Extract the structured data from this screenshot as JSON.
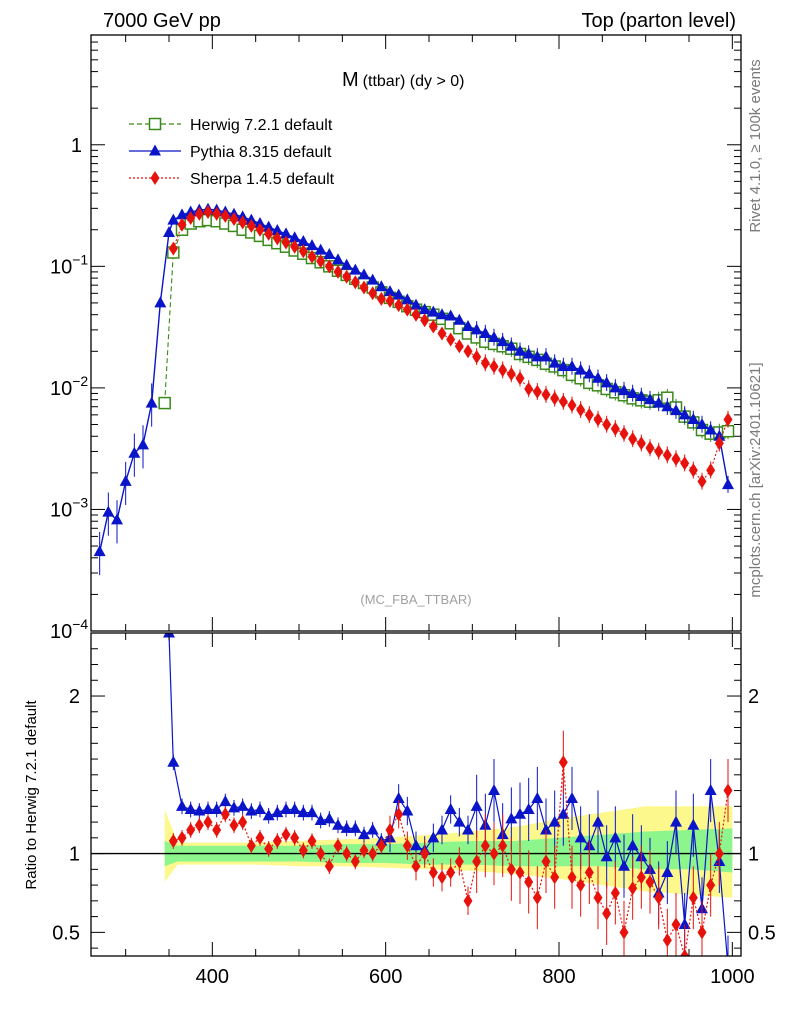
{
  "header": {
    "energy_label": "7000 GeV pp",
    "process_label": "Top (parton level)"
  },
  "side_labels": {
    "rivet": "Rivet 4.1.0, ≥ 100k events",
    "mcplots": "mcplots.cern.ch [arXiv:2401.10621]"
  },
  "colors": {
    "herwig": "#3a8a1a",
    "pythia": "#0a14c8",
    "sherpa": "#e8120c",
    "band_outer": "#fdf88c",
    "band_inner": "#8cf58c"
  },
  "chart_data": [
    {
      "type": "line",
      "panel": "main",
      "title": "M (ttbar) (dy > 0)",
      "title_main": "M",
      "title_sub": "(ttbar) (dy > 0)",
      "analysis_label": "(MC_FBA_TTBAR)",
      "xlabel": "",
      "ylabel": "",
      "yscale": "log",
      "xlim": [
        260,
        1010
      ],
      "ylim": [
        0.0001,
        8
      ],
      "x_ticks": [
        400,
        600,
        800,
        1000
      ],
      "y_tick_labels": [
        {
          "value": 1,
          "label": "1"
        },
        {
          "value": 0.1,
          "label": "10",
          "exp": "−1"
        },
        {
          "value": 0.01,
          "label": "10",
          "exp": "−2"
        },
        {
          "value": 0.001,
          "label": "10",
          "exp": "−3"
        },
        {
          "value": 0.0001,
          "label": "10",
          "exp": "−4"
        }
      ],
      "legend": [
        {
          "name": "Herwig 7.2.1 default",
          "color": "#3a8a1a",
          "marker": "open-square",
          "dash": "5,3"
        },
        {
          "name": "Pythia 8.315 default",
          "color": "#0a14c8",
          "marker": "triangle",
          "dash": ""
        },
        {
          "name": "Sherpa 1.4.5 default",
          "color": "#e8120c",
          "marker": "diamond",
          "dash": "2,2"
        }
      ],
      "series": [
        {
          "name": "Herwig 7.2.1 default",
          "x": [
            345,
            355,
            365,
            375,
            385,
            395,
            405,
            415,
            425,
            435,
            445,
            455,
            465,
            475,
            485,
            495,
            505,
            515,
            525,
            535,
            545,
            555,
            565,
            575,
            585,
            595,
            605,
            615,
            625,
            635,
            645,
            655,
            665,
            675,
            685,
            695,
            705,
            715,
            725,
            735,
            745,
            755,
            765,
            775,
            785,
            795,
            805,
            815,
            825,
            835,
            845,
            855,
            865,
            875,
            885,
            895,
            905,
            915,
            925,
            935,
            945,
            955,
            965,
            975,
            985,
            995
          ],
          "y": [
            0.0075,
            0.13,
            0.2,
            0.225,
            0.235,
            0.24,
            0.235,
            0.225,
            0.215,
            0.2,
            0.19,
            0.178,
            0.165,
            0.155,
            0.145,
            0.135,
            0.127,
            0.117,
            0.108,
            0.1,
            0.092,
            0.085,
            0.079,
            0.073,
            0.067,
            0.061,
            0.055,
            0.051,
            0.047,
            0.044,
            0.042,
            0.04,
            0.037,
            0.034,
            0.031,
            0.028,
            0.026,
            0.024,
            0.023,
            0.022,
            0.021,
            0.019,
            0.018,
            0.017,
            0.0158,
            0.015,
            0.014,
            0.0128,
            0.012,
            0.011,
            0.0105,
            0.0098,
            0.0092,
            0.0087,
            0.0082,
            0.0079,
            0.0077,
            0.0079,
            0.0083,
            0.0069,
            0.0058,
            0.0052,
            0.0045,
            0.0042,
            0.0043,
            0.0044
          ]
        },
        {
          "name": "Pythia 8.315 default",
          "x": [
            270,
            280,
            290,
            300,
            310,
            320,
            330,
            340,
            350,
            355,
            365,
            375,
            385,
            395,
            405,
            415,
            425,
            435,
            445,
            455,
            465,
            475,
            485,
            495,
            505,
            515,
            525,
            535,
            545,
            555,
            565,
            575,
            585,
            595,
            605,
            615,
            625,
            635,
            645,
            655,
            665,
            675,
            685,
            695,
            705,
            715,
            725,
            735,
            745,
            755,
            765,
            775,
            785,
            795,
            805,
            815,
            825,
            835,
            845,
            855,
            865,
            875,
            885,
            895,
            905,
            915,
            925,
            935,
            945,
            955,
            965,
            975,
            985,
            995
          ],
          "y": [
            0.00045,
            0.00095,
            0.00082,
            0.0017,
            0.0029,
            0.0034,
            0.0075,
            0.05,
            0.19,
            0.24,
            0.265,
            0.28,
            0.29,
            0.295,
            0.29,
            0.28,
            0.268,
            0.255,
            0.24,
            0.225,
            0.21,
            0.197,
            0.185,
            0.172,
            0.16,
            0.148,
            0.136,
            0.125,
            0.113,
            0.102,
            0.093,
            0.085,
            0.077,
            0.068,
            0.062,
            0.058,
            0.053,
            0.048,
            0.044,
            0.042,
            0.04,
            0.039,
            0.036,
            0.032,
            0.03,
            0.028,
            0.026,
            0.024,
            0.022,
            0.02,
            0.019,
            0.018,
            0.018,
            0.016,
            0.015,
            0.015,
            0.014,
            0.013,
            0.012,
            0.011,
            0.01,
            0.0095,
            0.009,
            0.0085,
            0.008,
            0.0075,
            0.007,
            0.0065,
            0.006,
            0.0055,
            0.005,
            0.0045,
            0.004,
            0.0016
          ]
        },
        {
          "name": "Sherpa 1.4.5 default",
          "x": [
            355,
            365,
            375,
            385,
            395,
            405,
            415,
            425,
            435,
            445,
            455,
            465,
            475,
            485,
            495,
            505,
            515,
            525,
            535,
            545,
            555,
            565,
            575,
            585,
            595,
            605,
            615,
            625,
            635,
            645,
            655,
            665,
            675,
            685,
            695,
            705,
            715,
            725,
            735,
            745,
            755,
            765,
            775,
            785,
            795,
            805,
            815,
            825,
            835,
            845,
            855,
            865,
            875,
            885,
            895,
            905,
            915,
            925,
            935,
            945,
            955,
            965,
            975,
            985,
            995
          ],
          "y": [
            0.14,
            0.22,
            0.25,
            0.27,
            0.28,
            0.27,
            0.26,
            0.245,
            0.23,
            0.215,
            0.2,
            0.185,
            0.17,
            0.157,
            0.145,
            0.133,
            0.12,
            0.11,
            0.1,
            0.09,
            0.082,
            0.074,
            0.067,
            0.06,
            0.054,
            0.052,
            0.048,
            0.044,
            0.04,
            0.036,
            0.032,
            0.028,
            0.025,
            0.022,
            0.02,
            0.018,
            0.016,
            0.015,
            0.014,
            0.013,
            0.012,
            0.0098,
            0.0093,
            0.0088,
            0.0082,
            0.0077,
            0.0072,
            0.0066,
            0.006,
            0.0055,
            0.005,
            0.0046,
            0.0042,
            0.0038,
            0.0035,
            0.0032,
            0.003,
            0.0028,
            0.0026,
            0.0024,
            0.0021,
            0.0017,
            0.0021,
            0.0035,
            0.0055
          ]
        }
      ]
    },
    {
      "type": "line",
      "panel": "ratio",
      "title": "",
      "xlabel": "",
      "ylabel": "Ratio to Herwig 7.2.1 default",
      "xlim": [
        260,
        1010
      ],
      "ylim": [
        0.35,
        2.4
      ],
      "x_ticks": [
        400,
        600,
        800,
        1000
      ],
      "y_ticks": [
        0.5,
        1,
        2
      ],
      "reference_line": 1,
      "series": [
        {
          "name": "Pythia 8.315 default",
          "x": [
            350,
            355,
            365,
            375,
            385,
            395,
            405,
            415,
            425,
            435,
            445,
            455,
            465,
            475,
            485,
            495,
            505,
            515,
            525,
            535,
            545,
            555,
            565,
            575,
            585,
            595,
            605,
            615,
            625,
            635,
            645,
            655,
            665,
            675,
            685,
            695,
            705,
            715,
            725,
            735,
            745,
            755,
            765,
            775,
            785,
            795,
            805,
            815,
            825,
            835,
            845,
            855,
            865,
            875,
            885,
            895,
            905,
            915,
            925,
            935,
            945,
            955,
            965,
            975,
            985,
            995
          ],
          "y": [
            2.4,
            1.58,
            1.3,
            1.28,
            1.27,
            1.28,
            1.28,
            1.33,
            1.29,
            1.3,
            1.27,
            1.28,
            1.24,
            1.26,
            1.28,
            1.28,
            1.26,
            1.26,
            1.21,
            1.22,
            1.18,
            1.16,
            1.16,
            1.12,
            1.15,
            1.08,
            1.1,
            1.35,
            1.27,
            1.05,
            1.02,
            1.1,
            1.15,
            1.28,
            1.2,
            1.15,
            1.3,
            1.18,
            1.4,
            1.12,
            1.22,
            1.25,
            1.28,
            1.35,
            1.15,
            1.2,
            1.25,
            1.35,
            1.1,
            1.05,
            1.2,
            0.98,
            1.1,
            0.92,
            1.05,
            0.98,
            0.9,
            0.75,
            0.88,
            1.2,
            0.55,
            1.18,
            0.65,
            1.4,
            0.95,
            0.28
          ]
        },
        {
          "name": "Sherpa 1.4.5 default",
          "x": [
            355,
            365,
            375,
            385,
            395,
            405,
            415,
            425,
            435,
            445,
            455,
            465,
            475,
            485,
            495,
            505,
            515,
            525,
            535,
            545,
            555,
            565,
            575,
            585,
            595,
            605,
            615,
            625,
            635,
            645,
            655,
            665,
            675,
            685,
            695,
            705,
            715,
            725,
            735,
            745,
            755,
            765,
            775,
            785,
            795,
            805,
            815,
            825,
            835,
            845,
            855,
            865,
            875,
            885,
            895,
            905,
            915,
            925,
            935,
            945,
            955,
            965,
            975,
            985,
            995
          ],
          "y": [
            1.08,
            1.1,
            1.15,
            1.18,
            1.2,
            1.15,
            1.25,
            1.18,
            1.2,
            1.05,
            1.1,
            1.03,
            1.08,
            1.12,
            1.1,
            1.02,
            1.08,
            1.0,
            0.92,
            1.05,
            1.0,
            0.95,
            1.02,
            1.0,
            1.05,
            1.15,
            1.25,
            1.05,
            0.92,
            1.0,
            0.88,
            0.85,
            0.88,
            0.95,
            0.7,
            0.95,
            1.05,
            1.0,
            1.05,
            0.9,
            0.88,
            0.82,
            0.72,
            0.95,
            0.85,
            1.58,
            0.85,
            0.8,
            0.88,
            0.72,
            0.62,
            0.75,
            0.5,
            0.78,
            0.85,
            0.82,
            0.72,
            0.45,
            0.55,
            0.35,
            0.72,
            0.5,
            0.8,
            1.0,
            1.4
          ]
        }
      ],
      "band": {
        "x": [
          345,
          360,
          380,
          400,
          450,
          500,
          550,
          600,
          650,
          700,
          750,
          800,
          850,
          900,
          950,
          1000
        ],
        "inner_lo": [
          0.92,
          0.95,
          0.95,
          0.95,
          0.95,
          0.95,
          0.94,
          0.94,
          0.93,
          0.93,
          0.92,
          0.92,
          0.92,
          0.9,
          0.9,
          0.88
        ],
        "inner_hi": [
          1.08,
          1.05,
          1.05,
          1.05,
          1.05,
          1.05,
          1.06,
          1.06,
          1.07,
          1.08,
          1.08,
          1.1,
          1.12,
          1.14,
          1.15,
          1.16
        ],
        "outer_lo": [
          0.82,
          0.93,
          0.93,
          0.93,
          0.93,
          0.92,
          0.92,
          0.91,
          0.9,
          0.89,
          0.87,
          0.84,
          0.8,
          0.76,
          0.74,
          0.72
        ],
        "outer_hi": [
          1.28,
          1.07,
          1.07,
          1.07,
          1.07,
          1.08,
          1.09,
          1.1,
          1.12,
          1.14,
          1.17,
          1.22,
          1.26,
          1.3,
          1.3,
          1.3
        ]
      }
    }
  ]
}
